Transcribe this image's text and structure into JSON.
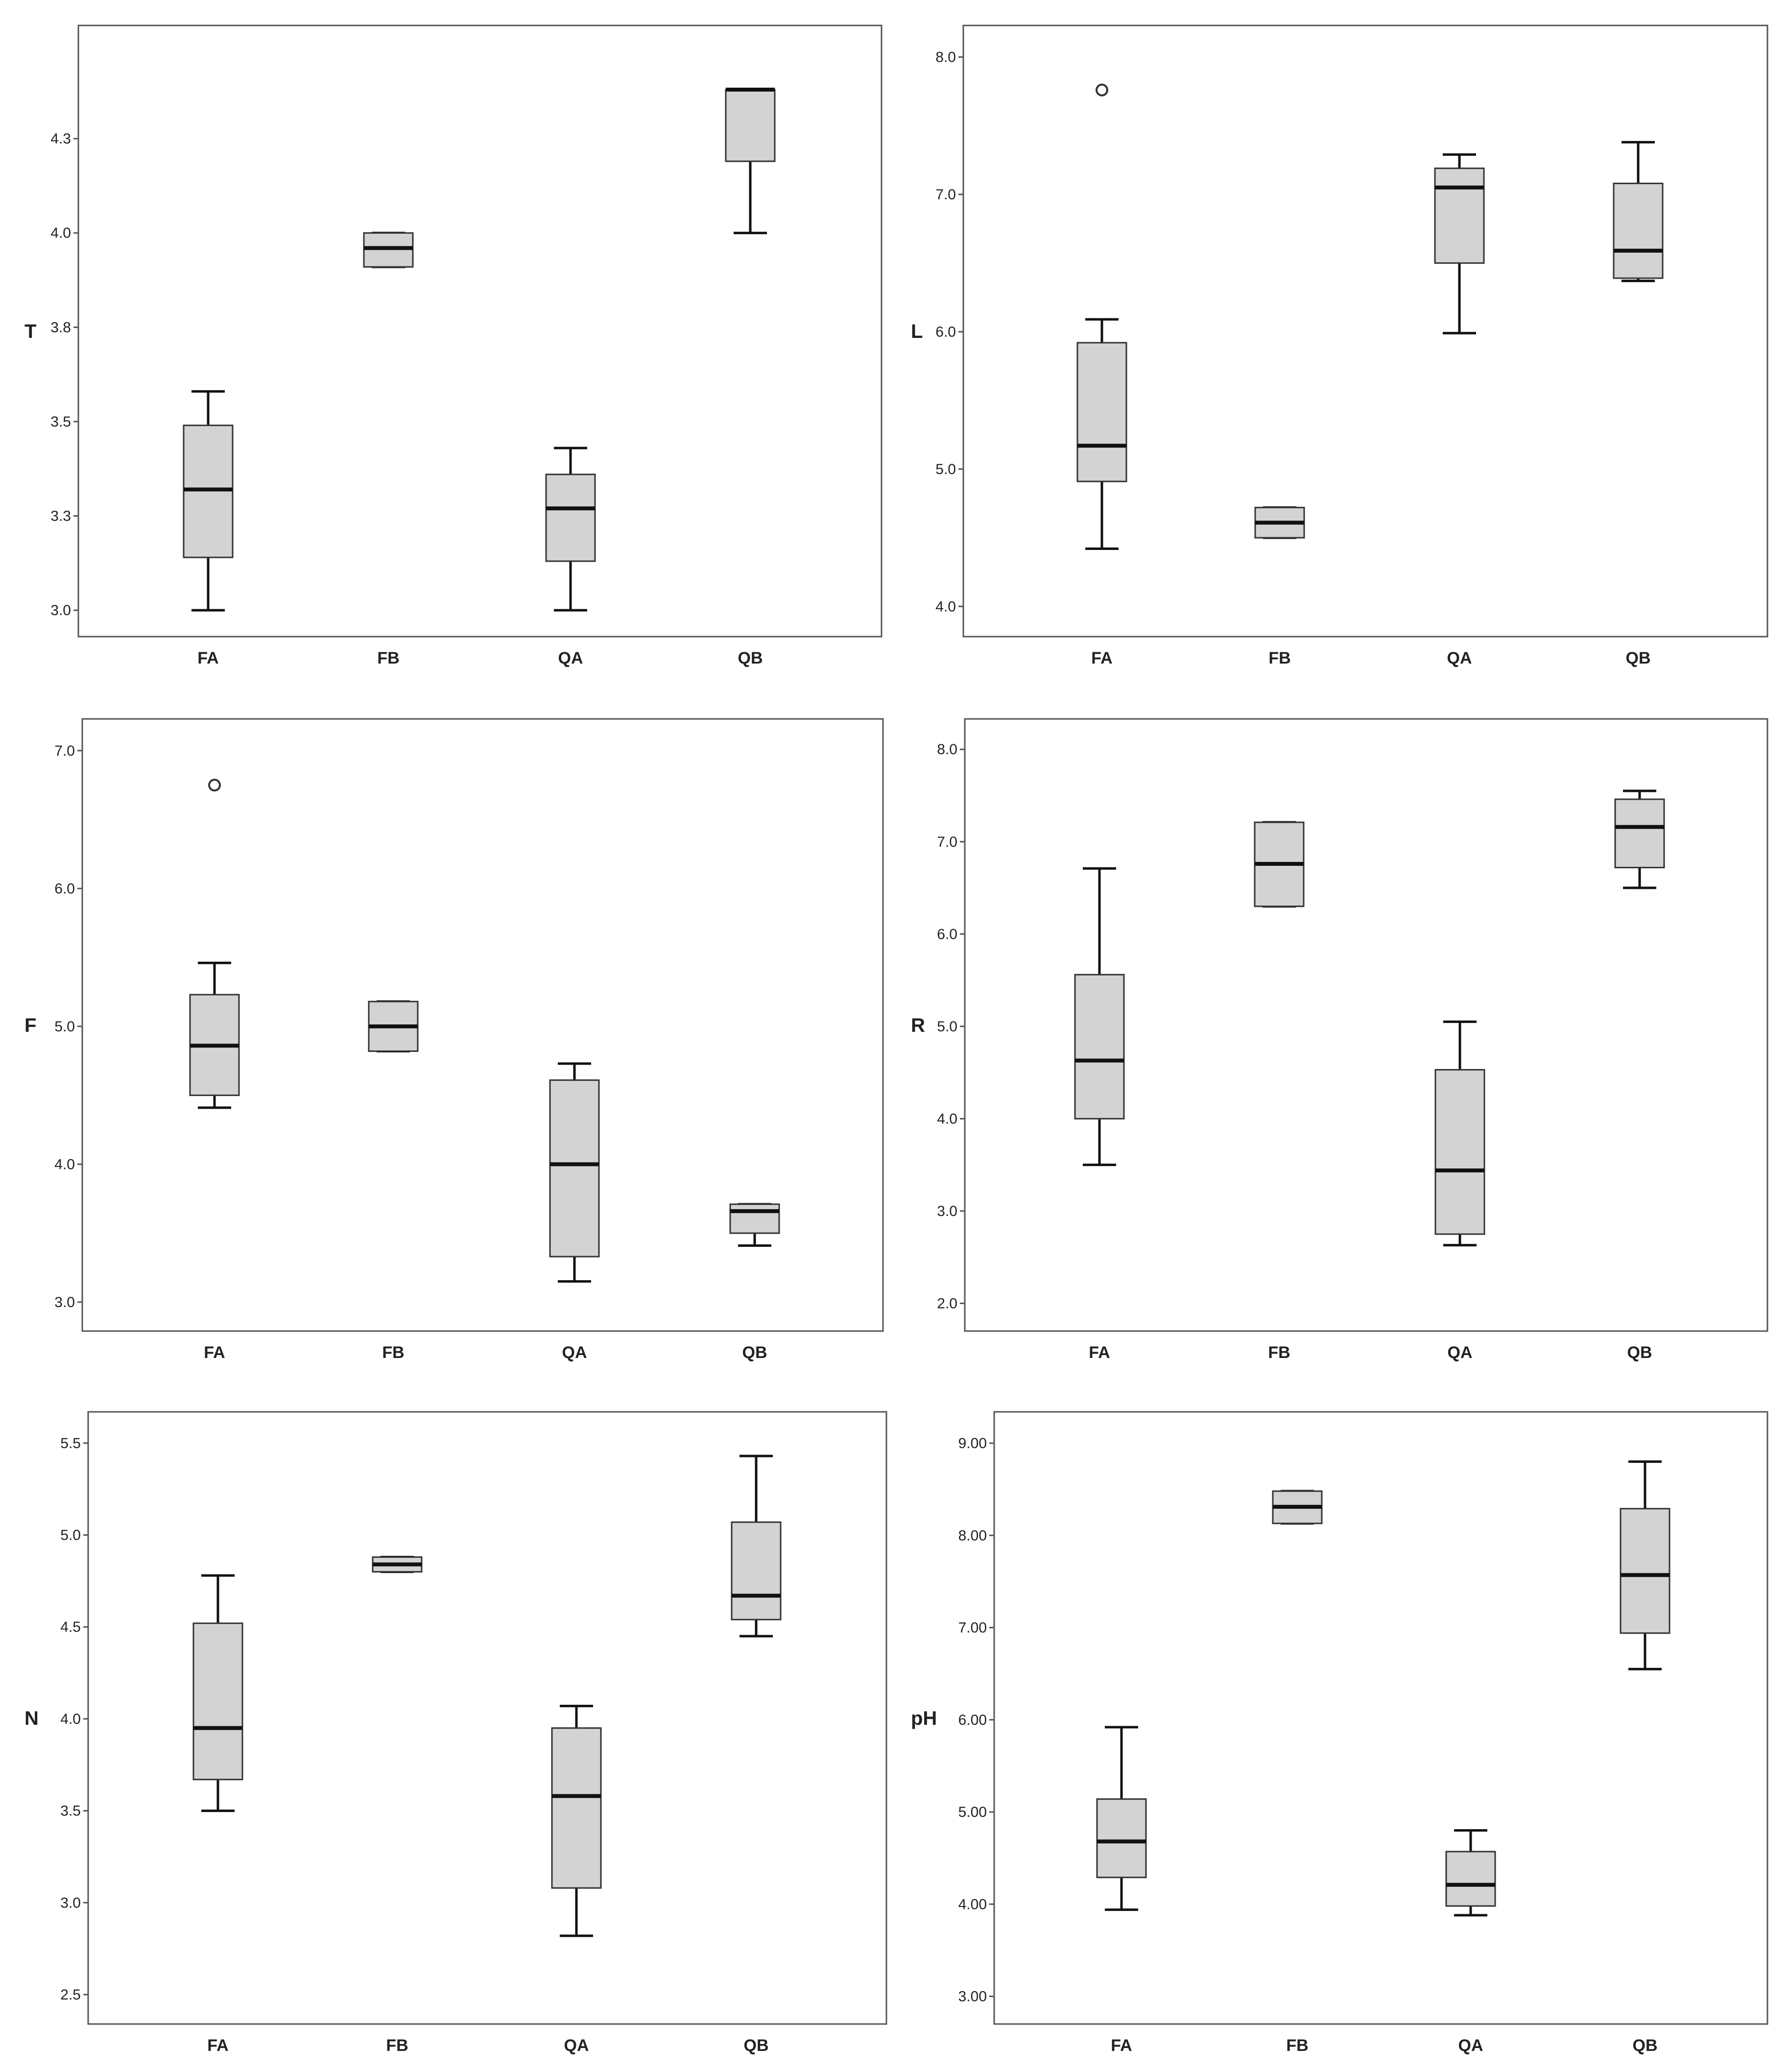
{
  "chart_data": [
    {
      "type": "boxplot",
      "ylabel": "T",
      "categories": [
        "FA",
        "FB",
        "QA",
        "QB"
      ],
      "ylim": [
        2.93,
        4.55
      ],
      "yticks": [
        3.0,
        3.25,
        3.5,
        3.75,
        4.0,
        4.25
      ],
      "ytick_labels": [
        "3.0",
        "3.3",
        "3.5",
        "3.8",
        "4.0",
        "4.3"
      ],
      "boxes": [
        {
          "min": 3.0,
          "q1": 3.14,
          "median": 3.32,
          "q3": 3.49,
          "max": 3.58,
          "outliers": []
        },
        {
          "min": 3.91,
          "q1": 3.91,
          "median": 3.96,
          "q3": 4.0,
          "max": 4.0,
          "outliers": []
        },
        {
          "min": 3.0,
          "q1": 3.13,
          "median": 3.27,
          "q3": 3.36,
          "max": 3.43,
          "outliers": []
        },
        {
          "min": 4.0,
          "q1": 4.19,
          "median": 4.38,
          "q3": 4.38,
          "max": 4.38,
          "outliers": []
        }
      ]
    },
    {
      "type": "boxplot",
      "ylabel": "L",
      "categories": [
        "FA",
        "FB",
        "QA",
        "QB"
      ],
      "ylim": [
        3.78,
        8.23
      ],
      "yticks": [
        4.0,
        5.0,
        6.0,
        7.0,
        8.0
      ],
      "ytick_labels": [
        "4.0",
        "5.0",
        "6.0",
        "7.0",
        "8.0"
      ],
      "boxes": [
        {
          "min": 4.42,
          "q1": 4.91,
          "median": 5.17,
          "q3": 5.92,
          "max": 6.09,
          "outliers": [
            7.76
          ]
        },
        {
          "min": 4.5,
          "q1": 4.5,
          "median": 4.61,
          "q3": 4.72,
          "max": 4.72,
          "outliers": []
        },
        {
          "min": 5.99,
          "q1": 6.5,
          "median": 7.05,
          "q3": 7.19,
          "max": 7.29,
          "outliers": []
        },
        {
          "min": 6.37,
          "q1": 6.39,
          "median": 6.59,
          "q3": 7.08,
          "max": 7.38,
          "outliers": []
        }
      ]
    },
    {
      "type": "boxplot",
      "ylabel": "F",
      "categories": [
        "FA",
        "FB",
        "QA",
        "QB"
      ],
      "ylim": [
        2.79,
        7.23
      ],
      "yticks": [
        3.0,
        4.0,
        5.0,
        6.0,
        7.0
      ],
      "ytick_labels": [
        "3.0",
        "4.0",
        "5.0",
        "6.0",
        "7.0"
      ],
      "boxes": [
        {
          "min": 4.41,
          "q1": 4.5,
          "median": 4.86,
          "q3": 5.23,
          "max": 5.46,
          "outliers": [
            6.75
          ]
        },
        {
          "min": 4.82,
          "q1": 4.82,
          "median": 5.0,
          "q3": 5.18,
          "max": 5.18,
          "outliers": []
        },
        {
          "min": 3.15,
          "q1": 3.33,
          "median": 4.0,
          "q3": 4.61,
          "max": 4.73,
          "outliers": []
        },
        {
          "min": 3.41,
          "q1": 3.5,
          "median": 3.66,
          "q3": 3.71,
          "max": 3.71,
          "outliers": []
        }
      ]
    },
    {
      "type": "boxplot",
      "ylabel": "R",
      "categories": [
        "FA",
        "FB",
        "QA",
        "QB"
      ],
      "ylim": [
        1.7,
        8.33
      ],
      "yticks": [
        2.0,
        3.0,
        4.0,
        5.0,
        6.0,
        7.0,
        8.0
      ],
      "ytick_labels": [
        "2.0",
        "3.0",
        "4.0",
        "5.0",
        "6.0",
        "7.0",
        "8.0"
      ],
      "boxes": [
        {
          "min": 3.5,
          "q1": 4.0,
          "median": 4.63,
          "q3": 5.56,
          "max": 6.71,
          "outliers": []
        },
        {
          "min": 6.3,
          "q1": 6.3,
          "median": 6.76,
          "q3": 7.21,
          "max": 7.21,
          "outliers": []
        },
        {
          "min": 2.63,
          "q1": 2.75,
          "median": 3.44,
          "q3": 4.53,
          "max": 5.05,
          "outliers": []
        },
        {
          "min": 6.5,
          "q1": 6.72,
          "median": 7.16,
          "q3": 7.46,
          "max": 7.55,
          "outliers": []
        }
      ]
    },
    {
      "type": "boxplot",
      "ylabel": "N",
      "categories": [
        "FA",
        "FB",
        "QA",
        "QB"
      ],
      "ylim": [
        2.34,
        5.67
      ],
      "yticks": [
        2.5,
        3.0,
        3.5,
        4.0,
        4.5,
        5.0,
        5.5
      ],
      "ytick_labels": [
        "2.5",
        "3.0",
        "3.5",
        "4.0",
        "4.5",
        "5.0",
        "5.5"
      ],
      "boxes": [
        {
          "min": 3.5,
          "q1": 3.67,
          "median": 3.95,
          "q3": 4.52,
          "max": 4.78,
          "outliers": []
        },
        {
          "min": 4.8,
          "q1": 4.8,
          "median": 4.84,
          "q3": 4.88,
          "max": 4.88,
          "outliers": []
        },
        {
          "min": 2.82,
          "q1": 3.08,
          "median": 3.58,
          "q3": 3.95,
          "max": 4.07,
          "outliers": []
        },
        {
          "min": 4.45,
          "q1": 4.54,
          "median": 4.67,
          "q3": 5.07,
          "max": 5.43,
          "outliers": []
        }
      ]
    },
    {
      "type": "boxplot",
      "ylabel": "pH",
      "categories": [
        "FA",
        "FB",
        "QA",
        "QB"
      ],
      "ylim": [
        2.7,
        9.34
      ],
      "yticks": [
        3.0,
        4.0,
        5.0,
        6.0,
        7.0,
        8.0,
        9.0
      ],
      "ytick_labels": [
        "3.00",
        "4.00",
        "5.00",
        "6.00",
        "7.00",
        "8.00",
        "9.00"
      ],
      "boxes": [
        {
          "min": 3.94,
          "q1": 4.29,
          "median": 4.68,
          "q3": 5.14,
          "max": 5.92,
          "outliers": []
        },
        {
          "min": 8.13,
          "q1": 8.13,
          "median": 8.31,
          "q3": 8.48,
          "max": 8.48,
          "outliers": []
        },
        {
          "min": 3.88,
          "q1": 3.98,
          "median": 4.21,
          "q3": 4.57,
          "max": 4.8,
          "outliers": []
        },
        {
          "min": 6.55,
          "q1": 6.94,
          "median": 7.57,
          "q3": 8.29,
          "max": 8.8,
          "outliers": []
        }
      ]
    }
  ]
}
